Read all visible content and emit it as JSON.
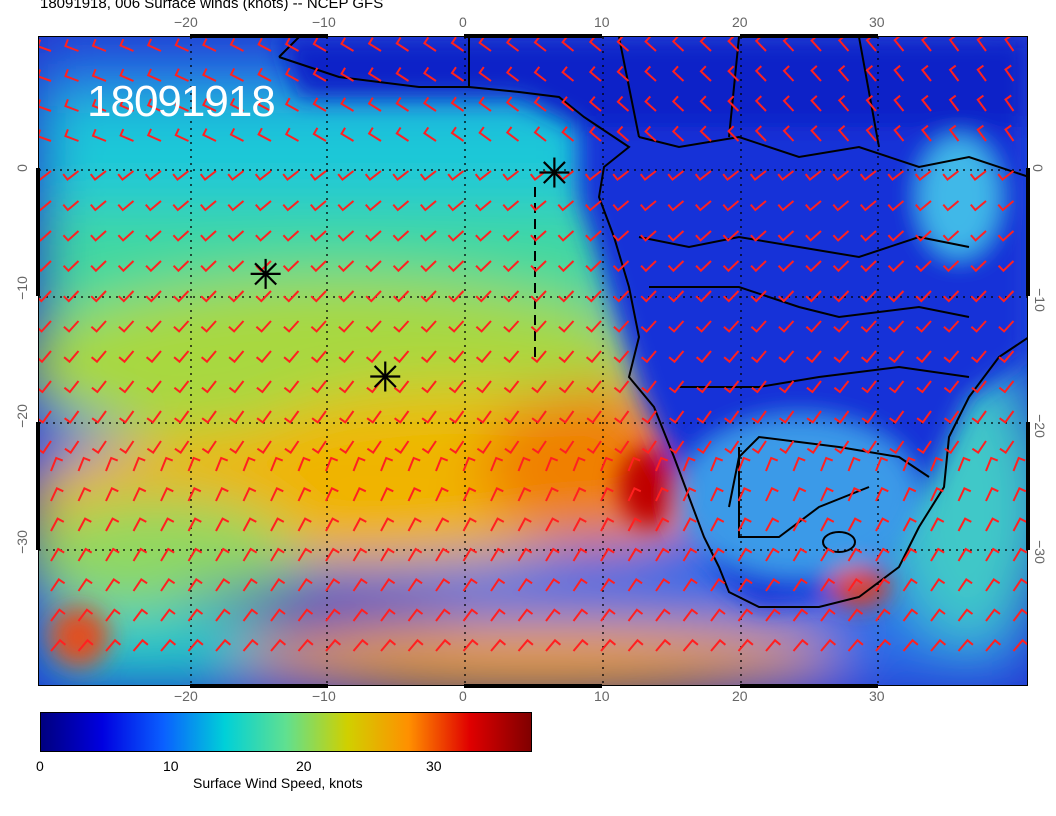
{
  "title": "18091918, 006 Surface winds (knots) -- NCEP GFS",
  "stamp": "18091918",
  "map": {
    "lon_ticks": [
      "−20",
      "−10",
      "0",
      "10",
      "20",
      "30"
    ],
    "lat_ticks": [
      "0",
      "−10",
      "−20",
      "−30"
    ],
    "lat_ticks_right": [
      "0",
      "−10",
      "−20",
      "−30"
    ],
    "markers": [
      {
        "name": "asterisk-marker",
        "lon": -14.5,
        "lat": -8.2
      },
      {
        "name": "asterisk-marker",
        "lon": -5.8,
        "lat": -16.3
      },
      {
        "name": "asterisk-marker",
        "lon": 6.5,
        "lat": -0.2
      }
    ],
    "wind_barb_color": "#ff2020",
    "border_color": "#000000"
  },
  "colorbar": {
    "label": "Surface Wind Speed, knots",
    "ticks": [
      "0",
      "10",
      "20",
      "30"
    ],
    "range": [
      0,
      37
    ],
    "colors": [
      "#00007f",
      "#0000e0",
      "#0a60ff",
      "#00d0d8",
      "#60e090",
      "#d0d000",
      "#ff9000",
      "#e00000",
      "#800000"
    ]
  }
}
